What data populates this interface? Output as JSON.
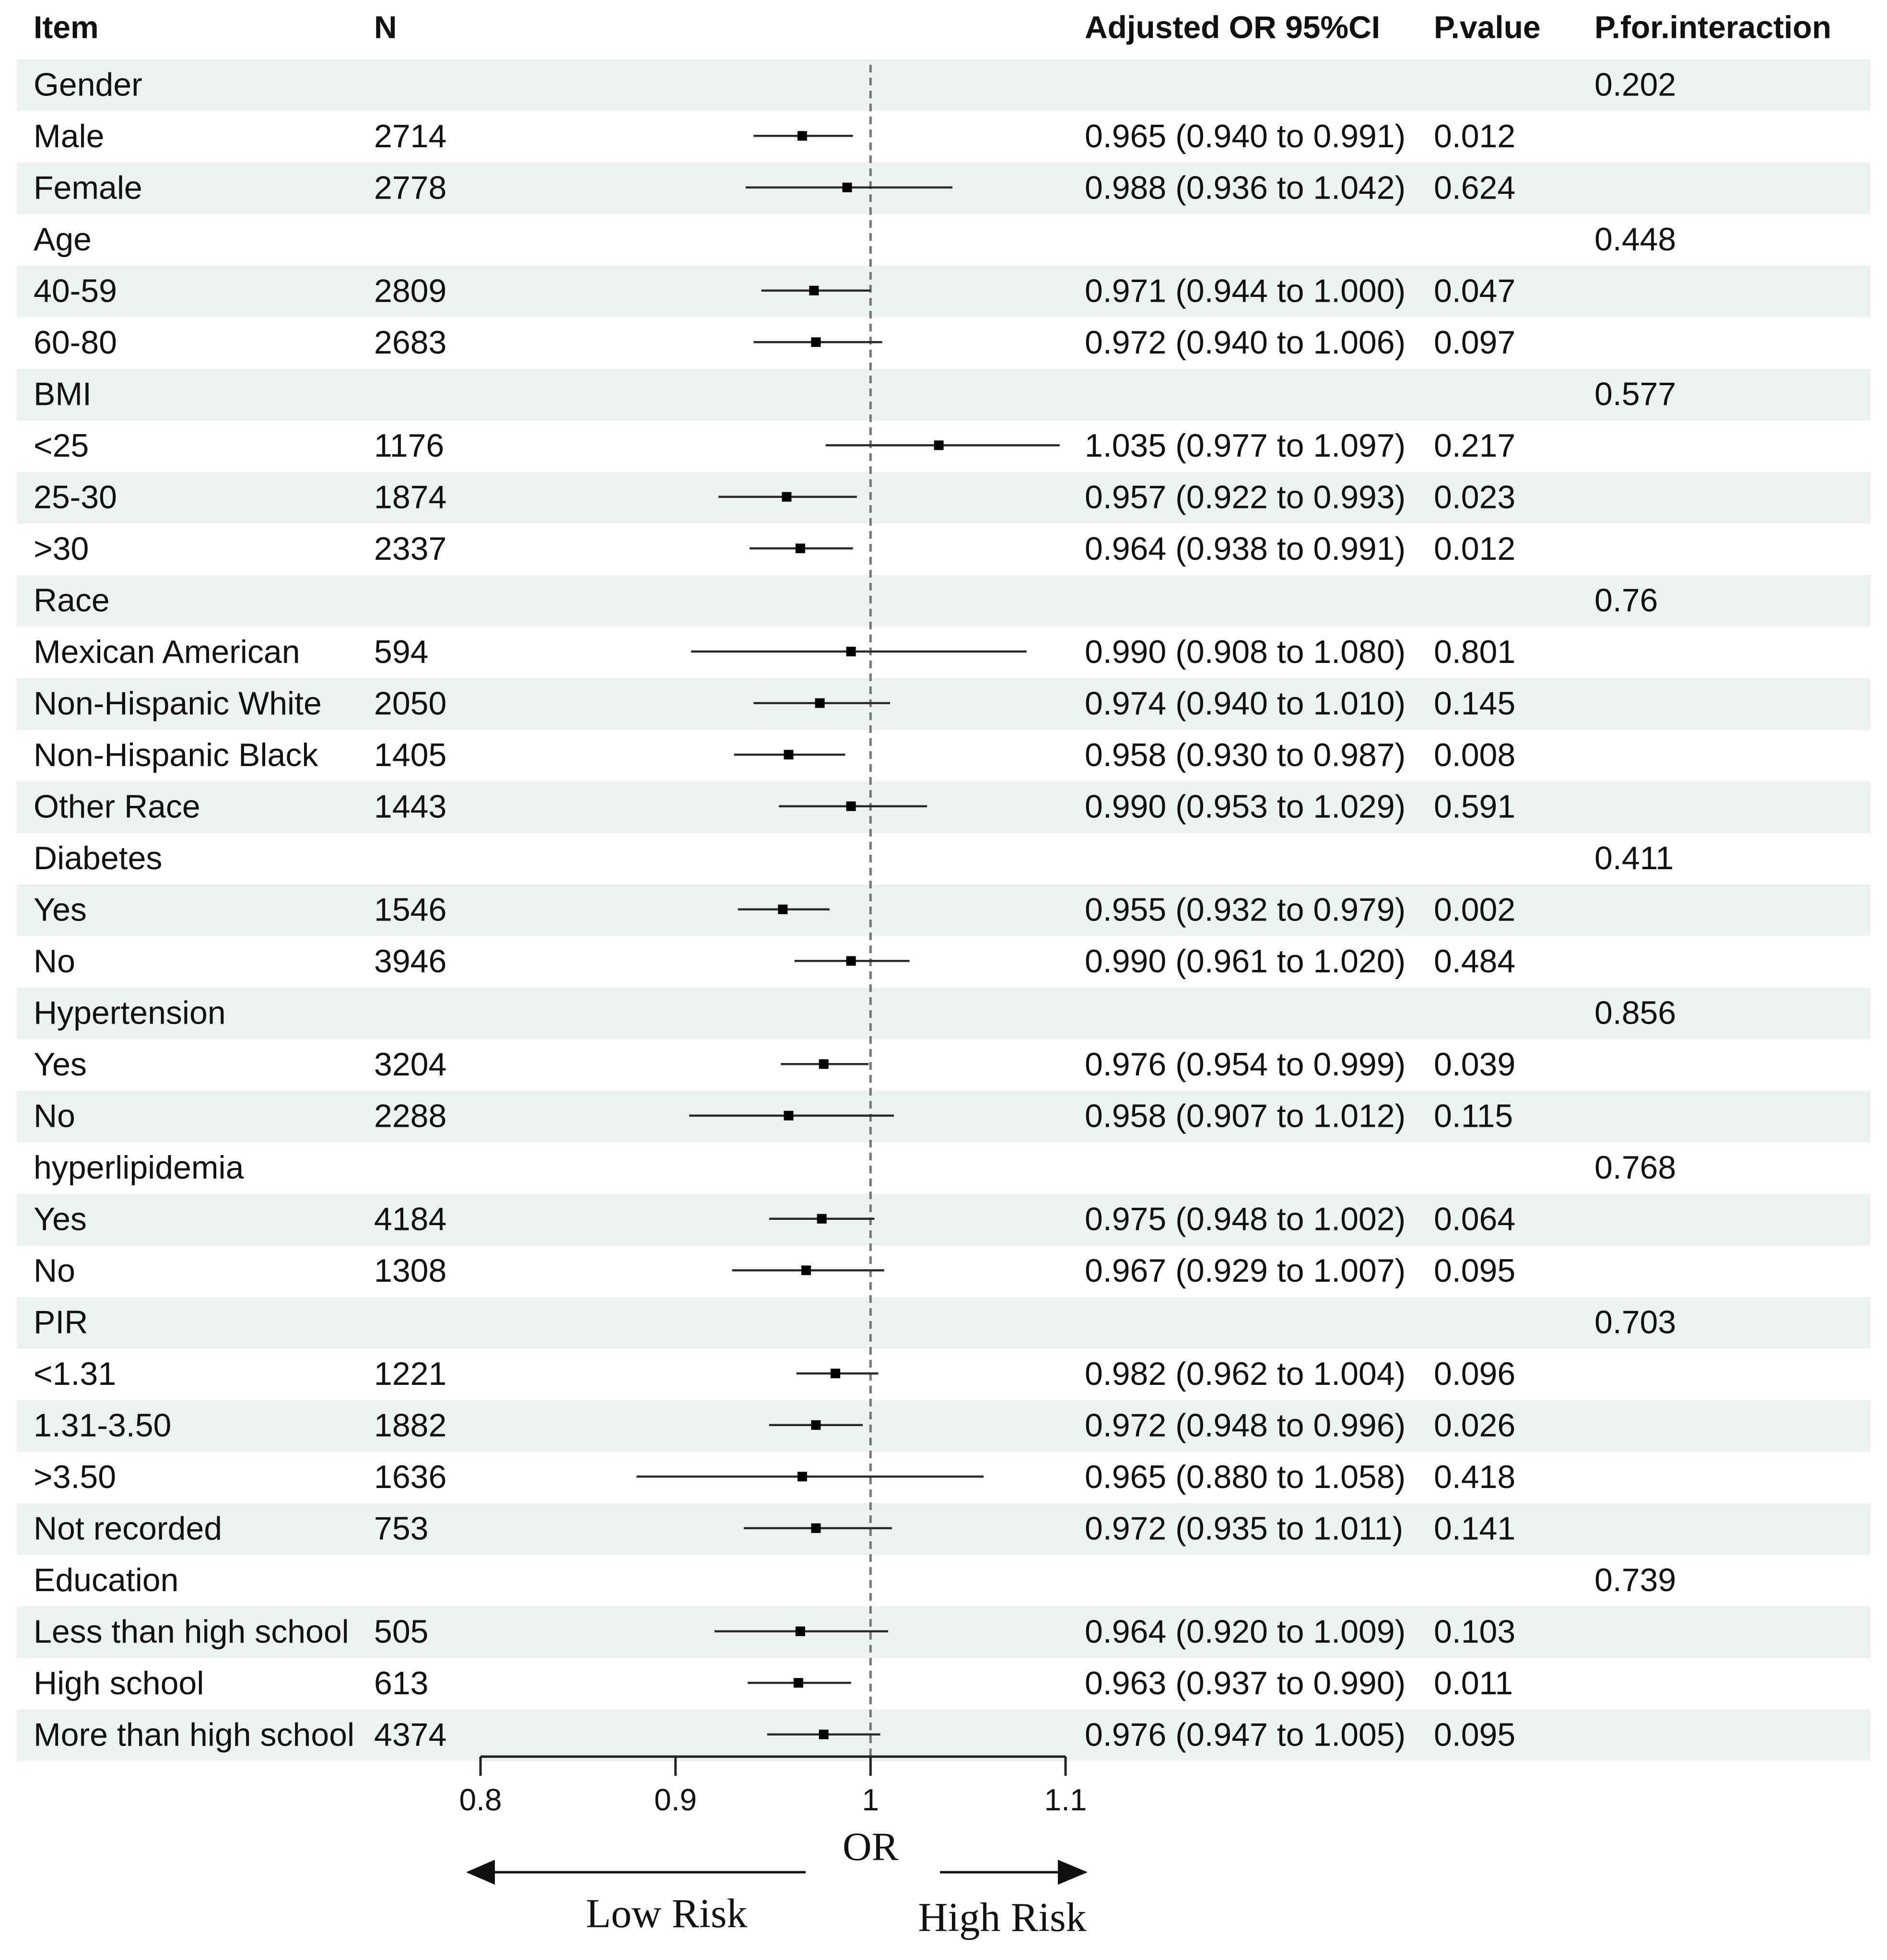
{
  "headers": {
    "item": "Item",
    "n": "N",
    "or_ci": "Adjusted OR 95%CI",
    "p_value": "P.value",
    "p_interaction": "P.for.interaction"
  },
  "rows": [
    {
      "label": "Gender",
      "type": "group",
      "p_interaction": "0.202"
    },
    {
      "label": "Male",
      "type": "sub",
      "n": "2714",
      "or": 0.965,
      "lo": 0.94,
      "hi": 0.991,
      "ci_text": "0.965 (0.940 to 0.991)",
      "p": "0.012"
    },
    {
      "label": "Female",
      "type": "sub",
      "n": "2778",
      "or": 0.988,
      "lo": 0.936,
      "hi": 1.042,
      "ci_text": "0.988 (0.936 to 1.042)",
      "p": "0.624"
    },
    {
      "label": "Age",
      "type": "group",
      "p_interaction": "0.448"
    },
    {
      "label": "40-59",
      "type": "sub",
      "n": "2809",
      "or": 0.971,
      "lo": 0.944,
      "hi": 1.0,
      "ci_text": "0.971 (0.944 to 1.000)",
      "p": "0.047"
    },
    {
      "label": "60-80",
      "type": "sub",
      "n": "2683",
      "or": 0.972,
      "lo": 0.94,
      "hi": 1.006,
      "ci_text": "0.972 (0.940 to 1.006)",
      "p": "0.097"
    },
    {
      "label": "BMI",
      "type": "group",
      "p_interaction": "0.577"
    },
    {
      "label": "<25",
      "type": "sub",
      "n": "1176",
      "or": 1.035,
      "lo": 0.977,
      "hi": 1.097,
      "ci_text": "1.035 (0.977 to 1.097)",
      "p": "0.217"
    },
    {
      "label": "25-30",
      "type": "sub",
      "n": "1874",
      "or": 0.957,
      "lo": 0.922,
      "hi": 0.993,
      "ci_text": "0.957 (0.922 to 0.993)",
      "p": "0.023"
    },
    {
      "label": ">30",
      "type": "sub",
      "n": "2337",
      "or": 0.964,
      "lo": 0.938,
      "hi": 0.991,
      "ci_text": "0.964 (0.938 to 0.991)",
      "p": "0.012"
    },
    {
      "label": "Race",
      "type": "group",
      "p_interaction": "0.76"
    },
    {
      "label": "Mexican American",
      "type": "sub",
      "n": "594",
      "or": 0.99,
      "lo": 0.908,
      "hi": 1.08,
      "ci_text": "0.990 (0.908 to 1.080)",
      "p": "0.801"
    },
    {
      "label": "Non-Hispanic White",
      "type": "sub",
      "n": "2050",
      "or": 0.974,
      "lo": 0.94,
      "hi": 1.01,
      "ci_text": "0.974 (0.940 to 1.010)",
      "p": "0.145"
    },
    {
      "label": "Non-Hispanic Black",
      "type": "sub",
      "n": "1405",
      "or": 0.958,
      "lo": 0.93,
      "hi": 0.987,
      "ci_text": "0.958 (0.930 to 0.987)",
      "p": "0.008"
    },
    {
      "label": "Other Race",
      "type": "sub",
      "n": "1443",
      "or": 0.99,
      "lo": 0.953,
      "hi": 1.029,
      "ci_text": "0.990 (0.953 to 1.029)",
      "p": "0.591"
    },
    {
      "label": "Diabetes",
      "type": "group",
      "p_interaction": "0.411"
    },
    {
      "label": "Yes",
      "type": "sub",
      "n": "1546",
      "or": 0.955,
      "lo": 0.932,
      "hi": 0.979,
      "ci_text": "0.955 (0.932 to 0.979)",
      "p": "0.002"
    },
    {
      "label": "No",
      "type": "sub",
      "n": "3946",
      "or": 0.99,
      "lo": 0.961,
      "hi": 1.02,
      "ci_text": "0.990 (0.961 to 1.020)",
      "p": "0.484"
    },
    {
      "label": "Hypertension",
      "type": "group",
      "p_interaction": "0.856"
    },
    {
      "label": "Yes",
      "type": "sub",
      "n": "3204",
      "or": 0.976,
      "lo": 0.954,
      "hi": 0.999,
      "ci_text": "0.976 (0.954 to 0.999)",
      "p": "0.039"
    },
    {
      "label": "No",
      "type": "sub",
      "n": "2288",
      "or": 0.958,
      "lo": 0.907,
      "hi": 1.012,
      "ci_text": "0.958 (0.907 to 1.012)",
      "p": "0.115"
    },
    {
      "label": "hyperlipidemia",
      "type": "group",
      "p_interaction": "0.768"
    },
    {
      "label": "Yes",
      "type": "sub",
      "n": "4184",
      "or": 0.975,
      "lo": 0.948,
      "hi": 1.002,
      "ci_text": "0.975 (0.948 to 1.002)",
      "p": "0.064"
    },
    {
      "label": "No",
      "type": "sub",
      "n": "1308",
      "or": 0.967,
      "lo": 0.929,
      "hi": 1.007,
      "ci_text": "0.967 (0.929 to 1.007)",
      "p": "0.095"
    },
    {
      "label": "PIR",
      "type": "group",
      "p_interaction": "0.703"
    },
    {
      "label": "<1.31",
      "type": "sub",
      "n": "1221",
      "or": 0.982,
      "lo": 0.962,
      "hi": 1.004,
      "ci_text": "0.982 (0.962 to 1.004)",
      "p": "0.096"
    },
    {
      "label": "1.31-3.50",
      "type": "sub",
      "n": "1882",
      "or": 0.972,
      "lo": 0.948,
      "hi": 0.996,
      "ci_text": "0.972 (0.948 to 0.996)",
      "p": "0.026"
    },
    {
      "label": ">3.50",
      "type": "sub",
      "n": "1636",
      "or": 0.965,
      "lo": 0.88,
      "hi": 1.058,
      "ci_text": "0.965 (0.880 to 1.058)",
      "p": "0.418"
    },
    {
      "label": "Not recorded",
      "type": "sub",
      "n": "753",
      "or": 0.972,
      "lo": 0.935,
      "hi": 1.011,
      "ci_text": "0.972 (0.935 to 1.011)",
      "p": "0.141"
    },
    {
      "label": "Education",
      "type": "group",
      "p_interaction": "0.739"
    },
    {
      "label": "Less than high school",
      "type": "sub",
      "n": "505",
      "or": 0.964,
      "lo": 0.92,
      "hi": 1.009,
      "ci_text": "0.964 (0.920 to 1.009)",
      "p": "0.103"
    },
    {
      "label": "High school",
      "type": "sub",
      "n": "613",
      "or": 0.963,
      "lo": 0.937,
      "hi": 0.99,
      "ci_text": "0.963 (0.937 to 0.990)",
      "p": "0.011"
    },
    {
      "label": "More than high school",
      "type": "sub",
      "n": "4374",
      "or": 0.976,
      "lo": 0.947,
      "hi": 1.005,
      "ci_text": "0.976 (0.947 to 1.005)",
      "p": "0.095"
    }
  ],
  "axis": {
    "ticks": [
      0.8,
      0.9,
      1,
      1.1
    ],
    "tick_labels": [
      "0.8",
      "0.9",
      "1",
      "1.1"
    ],
    "xlim": [
      0.8,
      1.1
    ],
    "reference": 1,
    "label": "OR",
    "left_label": "Low Risk",
    "right_label": "High  Risk"
  },
  "colors": {
    "stripe": "#eef1f1",
    "text": "#111111",
    "ci_line": "#2a2a2a",
    "point": "#000000",
    "ref_line": "#777777"
  },
  "chart_data": {
    "type": "forest",
    "xlabel": "OR",
    "xlim": [
      0.8,
      1.1
    ],
    "reference_line": 1,
    "annotations": {
      "left": "Low Risk",
      "right": "High  Risk"
    },
    "columns": [
      "Item",
      "N",
      "Adjusted OR 95%CI",
      "P.value",
      "P.for.interaction"
    ],
    "series": [
      {
        "name": "Male",
        "group": "Gender",
        "n": 2714,
        "or": 0.965,
        "lower": 0.94,
        "upper": 0.991,
        "p": 0.012
      },
      {
        "name": "Female",
        "group": "Gender",
        "n": 2778,
        "or": 0.988,
        "lower": 0.936,
        "upper": 1.042,
        "p": 0.624
      },
      {
        "name": "40-59",
        "group": "Age",
        "n": 2809,
        "or": 0.971,
        "lower": 0.944,
        "upper": 1.0,
        "p": 0.047
      },
      {
        "name": "60-80",
        "group": "Age",
        "n": 2683,
        "or": 0.972,
        "lower": 0.94,
        "upper": 1.006,
        "p": 0.097
      },
      {
        "name": "<25",
        "group": "BMI",
        "n": 1176,
        "or": 1.035,
        "lower": 0.977,
        "upper": 1.097,
        "p": 0.217
      },
      {
        "name": "25-30",
        "group": "BMI",
        "n": 1874,
        "or": 0.957,
        "lower": 0.922,
        "upper": 0.993,
        "p": 0.023
      },
      {
        "name": ">30",
        "group": "BMI",
        "n": 2337,
        "or": 0.964,
        "lower": 0.938,
        "upper": 0.991,
        "p": 0.012
      },
      {
        "name": "Mexican American",
        "group": "Race",
        "n": 594,
        "or": 0.99,
        "lower": 0.908,
        "upper": 1.08,
        "p": 0.801
      },
      {
        "name": "Non-Hispanic White",
        "group": "Race",
        "n": 2050,
        "or": 0.974,
        "lower": 0.94,
        "upper": 1.01,
        "p": 0.145
      },
      {
        "name": "Non-Hispanic Black",
        "group": "Race",
        "n": 1405,
        "or": 0.958,
        "lower": 0.93,
        "upper": 0.987,
        "p": 0.008
      },
      {
        "name": "Other Race",
        "group": "Race",
        "n": 1443,
        "or": 0.99,
        "lower": 0.953,
        "upper": 1.029,
        "p": 0.591
      },
      {
        "name": "Yes",
        "group": "Diabetes",
        "n": 1546,
        "or": 0.955,
        "lower": 0.932,
        "upper": 0.979,
        "p": 0.002
      },
      {
        "name": "No",
        "group": "Diabetes",
        "n": 3946,
        "or": 0.99,
        "lower": 0.961,
        "upper": 1.02,
        "p": 0.484
      },
      {
        "name": "Yes",
        "group": "Hypertension",
        "n": 3204,
        "or": 0.976,
        "lower": 0.954,
        "upper": 0.999,
        "p": 0.039
      },
      {
        "name": "No",
        "group": "Hypertension",
        "n": 2288,
        "or": 0.958,
        "lower": 0.907,
        "upper": 1.012,
        "p": 0.115
      },
      {
        "name": "Yes",
        "group": "hyperlipidemia",
        "n": 4184,
        "or": 0.975,
        "lower": 0.948,
        "upper": 1.002,
        "p": 0.064
      },
      {
        "name": "No",
        "group": "hyperlipidemia",
        "n": 1308,
        "or": 0.967,
        "lower": 0.929,
        "upper": 1.007,
        "p": 0.095
      },
      {
        "name": "<1.31",
        "group": "PIR",
        "n": 1221,
        "or": 0.982,
        "lower": 0.962,
        "upper": 1.004,
        "p": 0.096
      },
      {
        "name": "1.31-3.50",
        "group": "PIR",
        "n": 1882,
        "or": 0.972,
        "lower": 0.948,
        "upper": 0.996,
        "p": 0.026
      },
      {
        "name": ">3.50",
        "group": "PIR",
        "n": 1636,
        "or": 0.965,
        "lower": 0.88,
        "upper": 1.058,
        "p": 0.418
      },
      {
        "name": "Not recorded",
        "group": "PIR",
        "n": 753,
        "or": 0.972,
        "lower": 0.935,
        "upper": 1.011,
        "p": 0.141
      },
      {
        "name": "Less than high school",
        "group": "Education",
        "n": 505,
        "or": 0.964,
        "lower": 0.92,
        "upper": 1.009,
        "p": 0.103
      },
      {
        "name": "High school",
        "group": "Education",
        "n": 613,
        "or": 0.963,
        "lower": 0.937,
        "upper": 0.99,
        "p": 0.011
      },
      {
        "name": "More than high school",
        "group": "Education",
        "n": 4374,
        "or": 0.976,
        "lower": 0.947,
        "upper": 1.005,
        "p": 0.095
      }
    ],
    "interaction_p": {
      "Gender": 0.202,
      "Age": 0.448,
      "BMI": 0.577,
      "Race": 0.76,
      "Diabetes": 0.411,
      "Hypertension": 0.856,
      "hyperlipidemia": 0.768,
      "PIR": 0.703,
      "Education": 0.739
    }
  }
}
